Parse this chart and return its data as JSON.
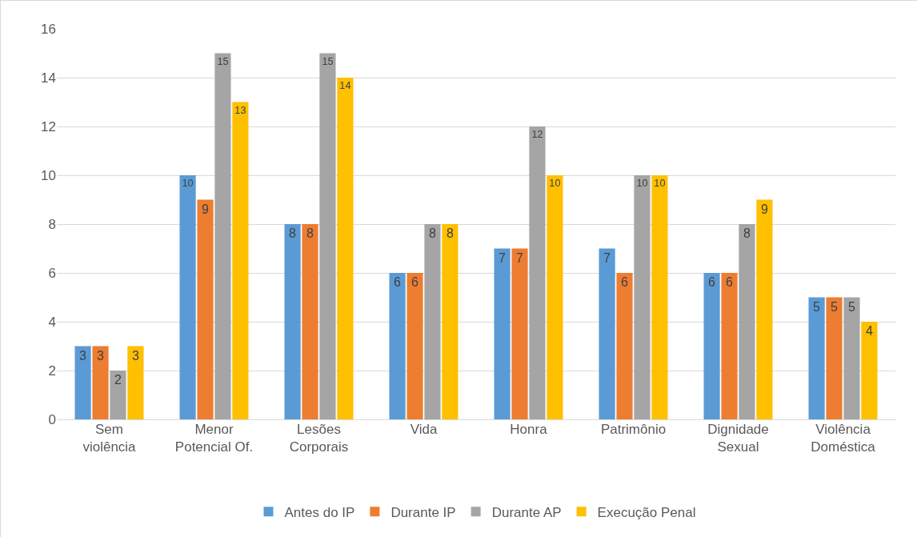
{
  "chart_data": {
    "type": "bar",
    "categories": [
      "Sem violência",
      "Menor Potencial Of.",
      "Lesões Corporais",
      "Vida",
      "Honra",
      "Patrimônio",
      "Dignidade Sexual",
      "Violência Doméstica"
    ],
    "series": [
      {
        "name": "Antes do IP",
        "color": "#5b9bd5",
        "values": [
          3,
          10,
          8,
          6,
          7,
          7,
          6,
          5
        ]
      },
      {
        "name": "Durante IP",
        "color": "#ed7d31",
        "values": [
          3,
          9,
          8,
          6,
          7,
          6,
          6,
          5
        ]
      },
      {
        "name": "Durante AP",
        "color": "#a5a5a5",
        "values": [
          2,
          15,
          15,
          8,
          12,
          10,
          8,
          5
        ]
      },
      {
        "name": "Execução Penal",
        "color": "#ffc000",
        "values": [
          3,
          13,
          14,
          8,
          10,
          10,
          9,
          4
        ]
      }
    ],
    "ylim": [
      0,
      16
    ],
    "yticks": [
      0,
      2,
      4,
      6,
      8,
      10,
      12,
      14,
      16
    ],
    "grid": "y",
    "legend": "bottom",
    "data_labels": true
  }
}
